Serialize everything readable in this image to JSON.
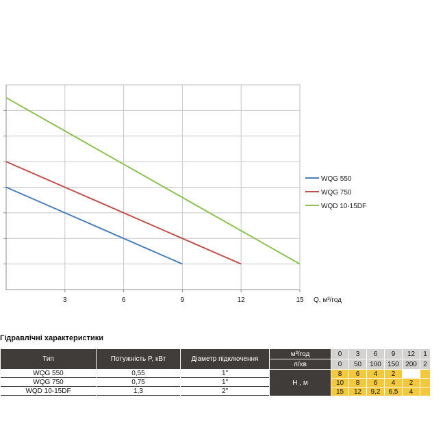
{
  "chart_data": {
    "type": "line",
    "title": "",
    "xlabel": "Q,  м³/год",
    "ylabel": "",
    "xlim": [
      0,
      15
    ],
    "ylim": [
      0,
      16
    ],
    "xticks": [
      3,
      6,
      9,
      12,
      15
    ],
    "ygrid_step": 2,
    "grid": true,
    "legend_position": "right",
    "series": [
      {
        "name": "WQG 550",
        "color": "#4a7ebb",
        "x": [
          0,
          9
        ],
        "y": [
          8,
          2
        ]
      },
      {
        "name": "WQG 750",
        "color": "#c0504d",
        "x": [
          0,
          12
        ],
        "y": [
          10,
          2
        ]
      },
      {
        "name": "WQD 10-15DF",
        "color": "#8cc152",
        "x": [
          0,
          15
        ],
        "y": [
          15,
          2
        ]
      }
    ]
  },
  "table": {
    "title": "Гідравлічні характеристики",
    "headers": {
      "type": "Тип",
      "power": "Потужність  P,  кВт",
      "diameter": "Діаметр підключення"
    },
    "unit_m3": "м³/год",
    "unit_lmin": "л/хв",
    "head_label": "Н , м",
    "flow_m3": [
      "0",
      "3",
      "6",
      "9",
      "12",
      "1"
    ],
    "flow_lmin": [
      "0",
      "50",
      "100",
      "150",
      "200",
      "2"
    ],
    "rows": [
      {
        "type": "WQG 550",
        "power": "0,55",
        "diameter": "1\"",
        "head": [
          "8",
          "6",
          "4",
          "2",
          "",
          ""
        ]
      },
      {
        "type": "WQG 750",
        "power": "0,75",
        "diameter": "1\"",
        "head": [
          "10",
          "8",
          "6",
          "4",
          "2",
          ""
        ]
      },
      {
        "type": "WQD 10-15DF",
        "power": "1,3",
        "diameter": "2\"",
        "head": [
          "15",
          "12",
          "9,2",
          "6,5",
          "4",
          ""
        ]
      }
    ]
  }
}
